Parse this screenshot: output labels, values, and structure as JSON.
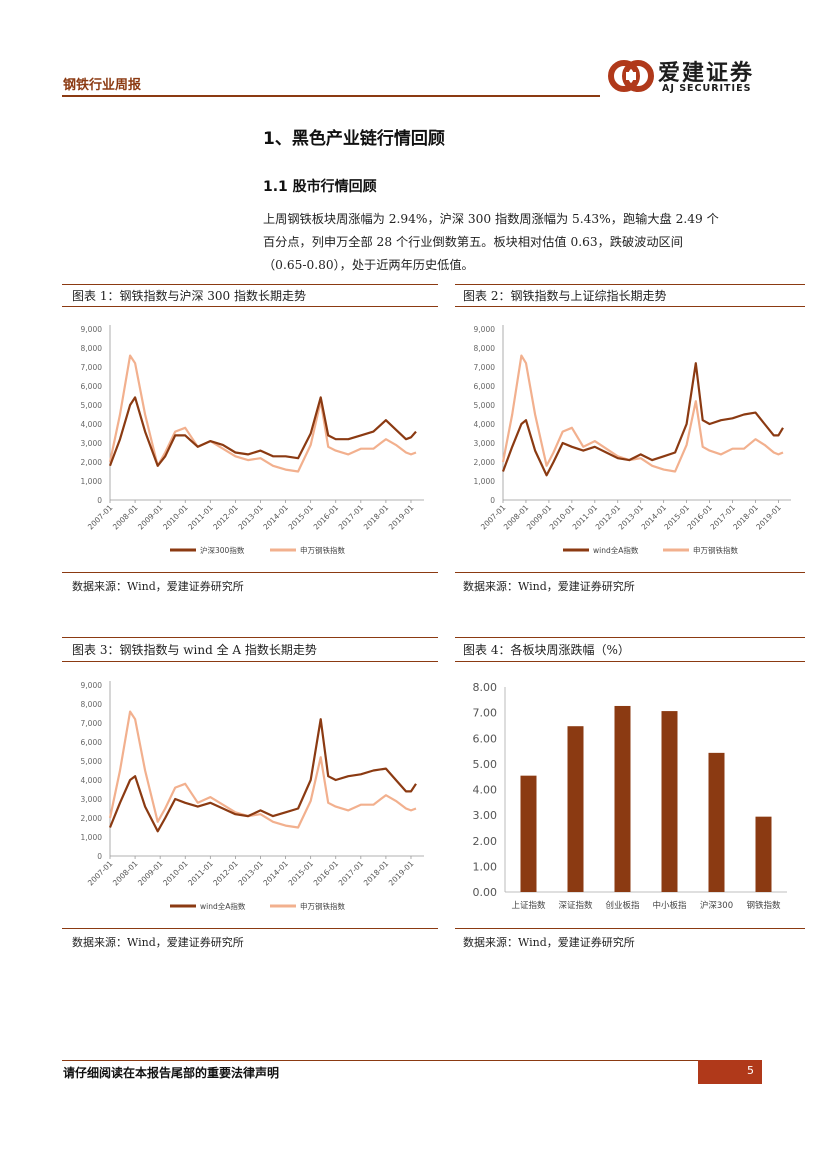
{
  "header": {
    "title": "钢铁行业周报",
    "logo_cn": "爱建证券",
    "logo_en": "AJ SECURITIES"
  },
  "section": {
    "heading": "1、黑色产业链行情回顾",
    "subheading": "1.1 股市行情回顾",
    "paragraph_lines": [
      "上周钢铁板块周涨幅为 2.94%，沪深 300 指数周涨幅为 5.43%，跑输大盘 2.49 个",
      "百分点，列申万全部 28 个行业倒数第五。板块相对估值 0.63，跌破波动区间",
      "（0.65-0.80），处于近两年历史低值。"
    ]
  },
  "figures": [
    {
      "caption": "图表 1：钢铁指数与沪深 300 指数长期走势",
      "source": "数据来源：Wind，爱建证券研究所"
    },
    {
      "caption": "图表 2：钢铁指数与上证综指长期走势",
      "source": "数据来源：Wind，爱建证券研究所"
    },
    {
      "caption": "图表 3：钢铁指数与 wind 全 A 指数长期走势",
      "source": "数据来源：Wind，爱建证券研究所"
    },
    {
      "caption": "图表 4：各板块周涨跌幅（%）",
      "source": "数据来源：Wind，爱建证券研究所"
    }
  ],
  "chart_data": [
    {
      "type": "line",
      "title": "钢铁指数与沪深 300 指数长期走势",
      "x_ticks": [
        "2007-01",
        "2008-01",
        "2009-01",
        "2010-01",
        "2011-01",
        "2012-01",
        "2013-01",
        "2014-01",
        "2015-01",
        "2016-01",
        "2017-01",
        "2018-01",
        "2019-01"
      ],
      "y_ticks": [
        "0",
        "1,000",
        "2,000",
        "3,000",
        "4,000",
        "5,000",
        "6,000",
        "7,000",
        "8,000",
        "9,000"
      ],
      "ylim": [
        0,
        9000
      ],
      "x": [
        2007.0,
        2007.4,
        2007.8,
        2008.0,
        2008.4,
        2008.9,
        2009.2,
        2009.6,
        2010.0,
        2010.5,
        2011.0,
        2011.5,
        2012.0,
        2012.5,
        2013.0,
        2013.5,
        2014.0,
        2014.5,
        2015.0,
        2015.4,
        2015.7,
        2016.0,
        2016.5,
        2017.0,
        2017.5,
        2018.0,
        2018.4,
        2018.8,
        2019.0,
        2019.2
      ],
      "series": [
        {
          "name": "沪深300指数",
          "color": "#8b3a12",
          "values": [
            1800,
            3200,
            5000,
            5400,
            3600,
            1800,
            2300,
            3400,
            3400,
            2800,
            3100,
            2900,
            2500,
            2400,
            2600,
            2300,
            2300,
            2200,
            3500,
            5400,
            3400,
            3200,
            3200,
            3400,
            3600,
            4200,
            3700,
            3200,
            3300,
            3600
          ]
        },
        {
          "name": "申万钢铁指数",
          "color": "#f2b08e",
          "values": [
            2000,
            4500,
            7600,
            7200,
            4500,
            1800,
            2500,
            3600,
            3800,
            2800,
            3100,
            2700,
            2300,
            2100,
            2200,
            1800,
            1600,
            1500,
            2900,
            5200,
            2800,
            2600,
            2400,
            2700,
            2700,
            3200,
            2900,
            2500,
            2400,
            2500
          ]
        }
      ]
    },
    {
      "type": "line",
      "title": "钢铁指数与上证综指长期走势",
      "x_ticks": [
        "2007-01",
        "2008-01",
        "2009-01",
        "2010-01",
        "2011-01",
        "2012-01",
        "2013-01",
        "2014-01",
        "2015-01",
        "2016-01",
        "2017-01",
        "2018-01",
        "2019-01"
      ],
      "y_ticks": [
        "0",
        "1,000",
        "2,000",
        "3,000",
        "4,000",
        "5,000",
        "6,000",
        "7,000",
        "8,000",
        "9,000"
      ],
      "ylim": [
        0,
        9000
      ],
      "x": [
        2007.0,
        2007.4,
        2007.8,
        2008.0,
        2008.4,
        2008.9,
        2009.2,
        2009.6,
        2010.0,
        2010.5,
        2011.0,
        2011.5,
        2012.0,
        2012.5,
        2013.0,
        2013.5,
        2014.0,
        2014.5,
        2015.0,
        2015.4,
        2015.7,
        2016.0,
        2016.5,
        2017.0,
        2017.5,
        2018.0,
        2018.4,
        2018.8,
        2019.0,
        2019.2
      ],
      "series": [
        {
          "name": "wind全A指数",
          "color": "#8b3a12",
          "values": [
            1500,
            2800,
            4000,
            4200,
            2600,
            1300,
            2000,
            3000,
            2800,
            2600,
            2800,
            2500,
            2200,
            2100,
            2400,
            2100,
            2300,
            2500,
            4000,
            7200,
            4200,
            4000,
            4200,
            4300,
            4500,
            4600,
            4000,
            3400,
            3400,
            3800
          ]
        },
        {
          "name": "申万钢铁指数",
          "color": "#f2b08e",
          "values": [
            2000,
            4500,
            7600,
            7200,
            4500,
            1800,
            2500,
            3600,
            3800,
            2800,
            3100,
            2700,
            2300,
            2100,
            2200,
            1800,
            1600,
            1500,
            2900,
            5200,
            2800,
            2600,
            2400,
            2700,
            2700,
            3200,
            2900,
            2500,
            2400,
            2500
          ]
        }
      ]
    },
    {
      "type": "line",
      "title": "钢铁指数与 wind 全 A 指数长期走势",
      "x_ticks": [
        "2007-01",
        "2008-01",
        "2009-01",
        "2010-01",
        "2011-01",
        "2012-01",
        "2013-01",
        "2014-01",
        "2015-01",
        "2016-01",
        "2017-01",
        "2018-01",
        "2019-01"
      ],
      "y_ticks": [
        "0",
        "1,000",
        "2,000",
        "3,000",
        "4,000",
        "5,000",
        "6,000",
        "7,000",
        "8,000",
        "9,000"
      ],
      "ylim": [
        0,
        9000
      ],
      "x": [
        2007.0,
        2007.4,
        2007.8,
        2008.0,
        2008.4,
        2008.9,
        2009.2,
        2009.6,
        2010.0,
        2010.5,
        2011.0,
        2011.5,
        2012.0,
        2012.5,
        2013.0,
        2013.5,
        2014.0,
        2014.5,
        2015.0,
        2015.4,
        2015.7,
        2016.0,
        2016.5,
        2017.0,
        2017.5,
        2018.0,
        2018.4,
        2018.8,
        2019.0,
        2019.2
      ],
      "series": [
        {
          "name": "wind全A指数",
          "color": "#8b3a12",
          "values": [
            1500,
            2800,
            4000,
            4200,
            2600,
            1300,
            2000,
            3000,
            2800,
            2600,
            2800,
            2500,
            2200,
            2100,
            2400,
            2100,
            2300,
            2500,
            4000,
            7200,
            4200,
            4000,
            4200,
            4300,
            4500,
            4600,
            4000,
            3400,
            3400,
            3800
          ]
        },
        {
          "name": "申万钢铁指数",
          "color": "#f2b08e",
          "values": [
            2000,
            4500,
            7600,
            7200,
            4500,
            1800,
            2500,
            3600,
            3800,
            2800,
            3100,
            2700,
            2300,
            2100,
            2200,
            1800,
            1600,
            1500,
            2900,
            5200,
            2800,
            2600,
            2400,
            2700,
            2700,
            3200,
            2900,
            2500,
            2400,
            2500
          ]
        }
      ]
    },
    {
      "type": "bar",
      "title": "各板块周涨跌幅（%）",
      "categories": [
        "上证指数",
        "深证指数",
        "创业板指",
        "中小板指",
        "沪深300",
        "钢铁指数"
      ],
      "values": [
        4.54,
        6.47,
        7.26,
        7.06,
        5.43,
        2.94
      ],
      "y_ticks": [
        "0.00",
        "1.00",
        "2.00",
        "3.00",
        "4.00",
        "5.00",
        "6.00",
        "7.00",
        "8.00"
      ],
      "ylim": [
        0,
        8
      ],
      "color": "#8b3a12"
    }
  ],
  "footer": {
    "disclaimer": "请仔细阅读在本报告尾部的重要法律声明",
    "page_number": "5"
  }
}
